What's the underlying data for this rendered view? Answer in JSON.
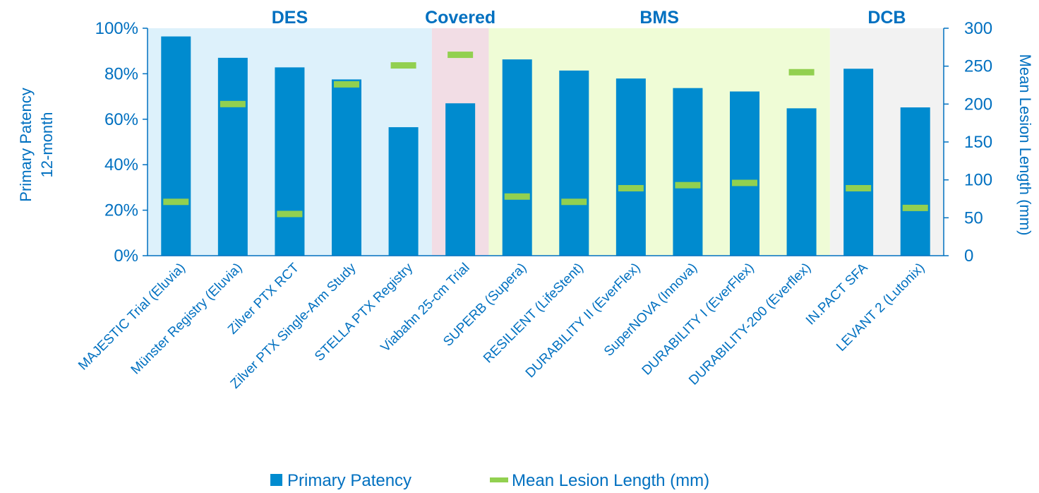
{
  "chart_data": {
    "type": "bar",
    "categories": [
      "MAJESTIC Trial (Eluvia)",
      "Münster Registry (Eluvia)",
      "Zilver PTX RCT",
      "Zilver PTX Single-Arm Study",
      "STELLA PTX Registry",
      "Viabahn 25-cm Trial",
      "SUPERB (Supera)",
      "RESILIENT (LifeStent)",
      "DURABILITY II (EverFlex)",
      "SuperNOVA (Innova)",
      "DURABILITY I (EverFlex)",
      "DURABILITY-200 (Everflex)",
      "IN.PACT SFA",
      "LEVANT 2 (Lutonix)"
    ],
    "series": [
      {
        "name": "Primary Patency",
        "type": "bar",
        "axis": "left",
        "color": "#008BCF",
        "values": [
          96.4,
          87.0,
          82.8,
          77.5,
          56.5,
          67.0,
          86.3,
          81.4,
          77.9,
          73.7,
          72.2,
          64.8,
          82.2,
          65.2
        ]
      },
      {
        "name": "Mean Lesion Length (mm)",
        "type": "marker-line",
        "axis": "right",
        "color": "#92D050",
        "values": [
          71,
          200,
          55,
          226,
          251,
          265,
          78,
          71,
          89,
          93,
          96,
          242,
          89,
          63
        ]
      }
    ],
    "y_left": {
      "label_lines": [
        "Primary Patency",
        "12-month"
      ],
      "range": [
        0,
        100
      ],
      "ticks": [
        "0%",
        "20%",
        "40%",
        "60%",
        "80%",
        "100%"
      ]
    },
    "y_right": {
      "label": "Mean Lesion Length (mm)",
      "range": [
        0,
        300
      ],
      "ticks": [
        "0",
        "50",
        "100",
        "150",
        "200",
        "250",
        "300"
      ]
    },
    "groups": [
      {
        "label": "DES",
        "from": 0,
        "to": 4,
        "color": "#DDF1FB"
      },
      {
        "label": "Covered",
        "from": 5,
        "to": 5,
        "color": "#F2DDE5"
      },
      {
        "label": "BMS",
        "from": 6,
        "to": 11,
        "color": "#EFFCD6"
      },
      {
        "label": "DCB",
        "from": 12,
        "to": 13,
        "color": "#F2F2F2"
      }
    ],
    "legend": {
      "position": "bottom"
    },
    "text_color": "#0070C0",
    "grid": false
  }
}
